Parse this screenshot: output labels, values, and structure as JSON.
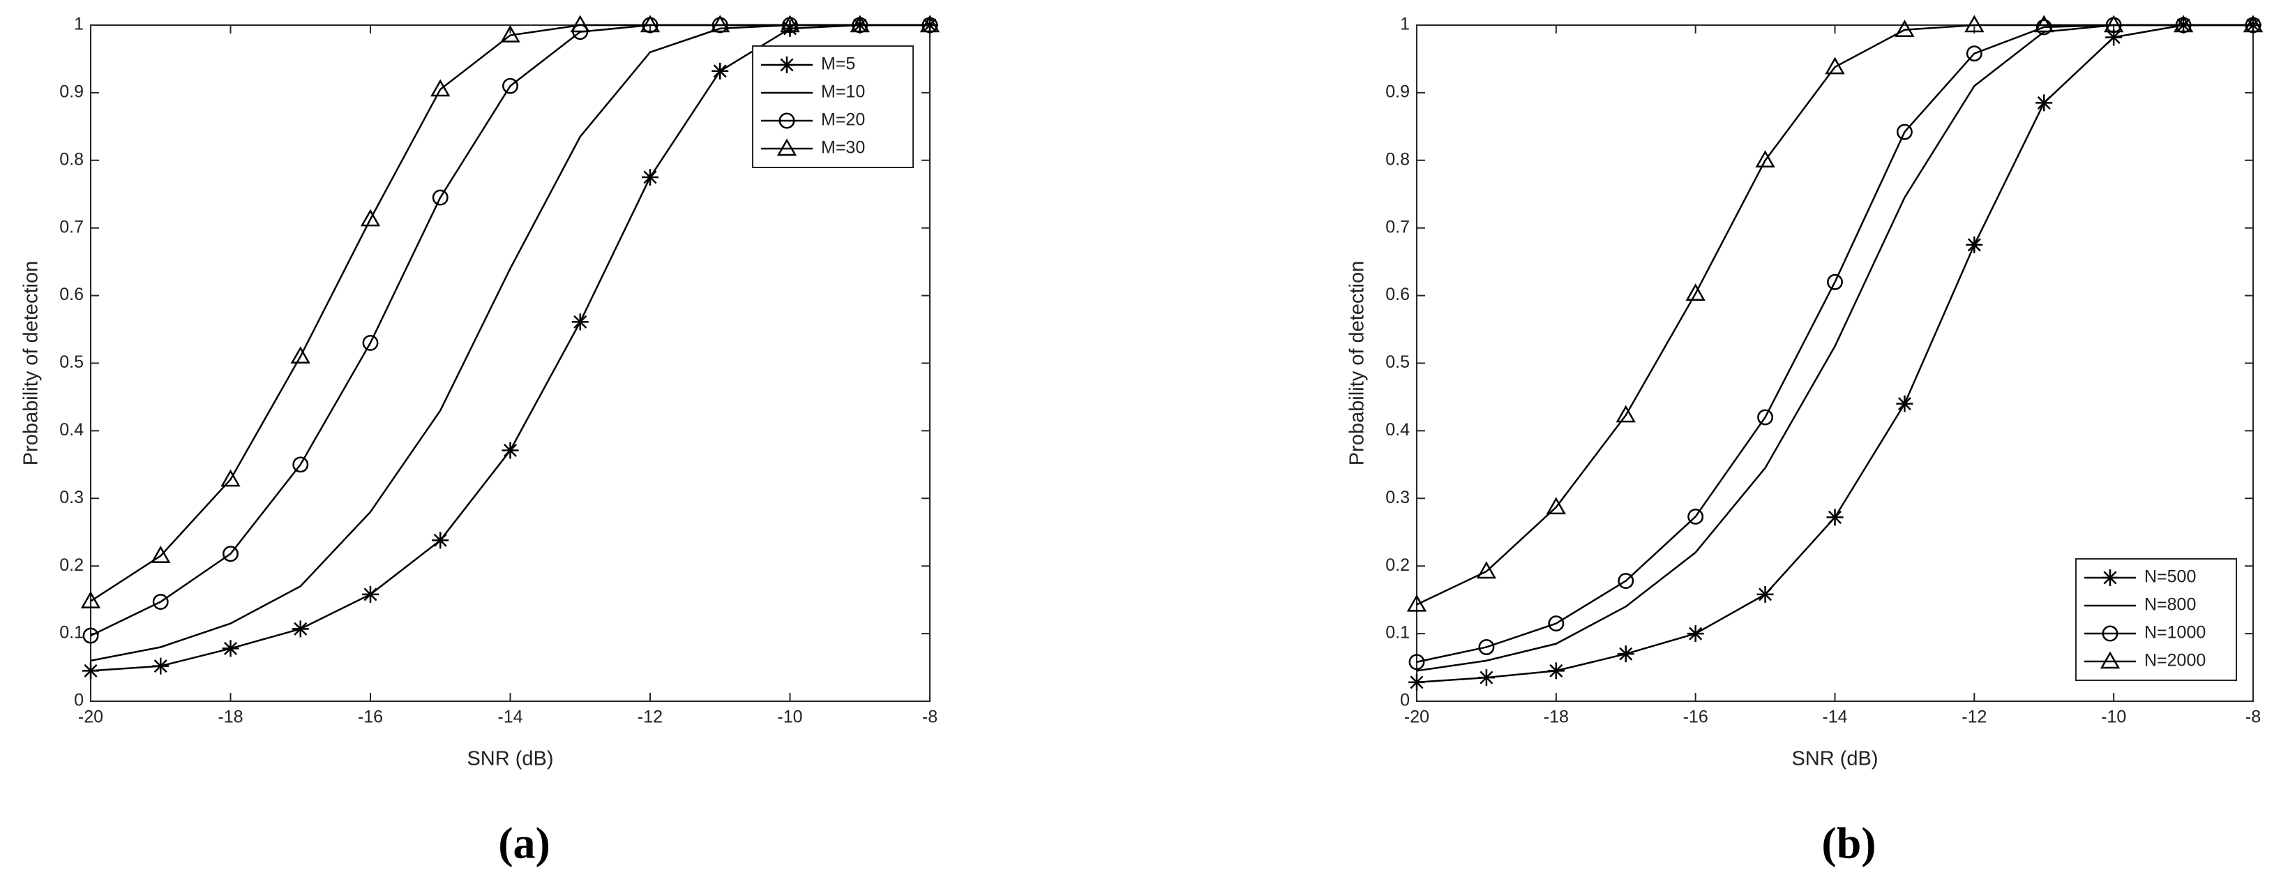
{
  "chart_data": [
    {
      "type": "line",
      "label": "(a)",
      "xlabel": "SNR (dB)",
      "ylabel": "Probability of detection",
      "x": [
        -20,
        -19,
        -18,
        -17,
        -16,
        -15,
        -14,
        -13,
        -12,
        -11,
        -10,
        -9,
        -8
      ],
      "xlim": [
        -20,
        -8
      ],
      "xticks": [
        -20,
        -18,
        -16,
        -14,
        -12,
        -10,
        -8
      ],
      "ylim": [
        0,
        1
      ],
      "yticks": [
        0,
        0.1,
        0.2,
        0.3,
        0.4,
        0.5,
        0.6,
        0.7,
        0.8,
        0.9,
        1
      ],
      "legend": "northeast",
      "series": [
        {
          "name": "M=5",
          "color": "#000000",
          "marker": "star",
          "values": [
            0.045,
            0.052,
            0.078,
            0.107,
            0.158,
            0.238,
            0.371,
            0.561,
            0.775,
            0.932,
            0.995,
            1,
            1
          ]
        },
        {
          "name": "M=10",
          "color": "#000000",
          "marker": "none",
          "values": [
            0.06,
            0.08,
            0.115,
            0.17,
            0.28,
            0.43,
            0.64,
            0.835,
            0.96,
            0.995,
            1,
            1,
            1
          ]
        },
        {
          "name": "M=20",
          "color": "#000000",
          "marker": "circle",
          "values": [
            0.097,
            0.147,
            0.218,
            0.35,
            0.53,
            0.745,
            0.91,
            0.99,
            1,
            1,
            1,
            1,
            1
          ]
        },
        {
          "name": "M=30",
          "color": "#000000",
          "marker": "triangle",
          "values": [
            0.148,
            0.215,
            0.328,
            0.51,
            0.713,
            0.905,
            0.985,
            1,
            1,
            1,
            1,
            1,
            1
          ]
        }
      ]
    },
    {
      "type": "line",
      "label": "(b)",
      "xlabel": "SNR (dB)",
      "ylabel": "Probability of detection",
      "x": [
        -20,
        -19,
        -18,
        -17,
        -16,
        -15,
        -14,
        -13,
        -12,
        -11,
        -10,
        -9,
        -8
      ],
      "xlim": [
        -20,
        -8
      ],
      "xticks": [
        -20,
        -18,
        -16,
        -14,
        -12,
        -10,
        -8
      ],
      "ylim": [
        0,
        1
      ],
      "yticks": [
        0,
        0.1,
        0.2,
        0.3,
        0.4,
        0.5,
        0.6,
        0.7,
        0.8,
        0.9,
        1
      ],
      "legend": "southeast",
      "series": [
        {
          "name": "N=500",
          "color": "#000000",
          "marker": "star",
          "values": [
            0.028,
            0.035,
            0.045,
            0.07,
            0.1,
            0.158,
            0.272,
            0.44,
            0.675,
            0.885,
            0.982,
            1,
            1
          ]
        },
        {
          "name": "N=800",
          "color": "#000000",
          "marker": "none",
          "values": [
            0.045,
            0.06,
            0.085,
            0.14,
            0.22,
            0.345,
            0.525,
            0.745,
            0.91,
            0.99,
            1,
            1,
            1
          ]
        },
        {
          "name": "N=1000",
          "color": "#000000",
          "marker": "circle",
          "values": [
            0.058,
            0.08,
            0.115,
            0.178,
            0.273,
            0.42,
            0.62,
            0.842,
            0.958,
            0.997,
            1,
            1,
            1
          ]
        },
        {
          "name": "N=2000",
          "color": "#000000",
          "marker": "triangle",
          "values": [
            0.143,
            0.192,
            0.287,
            0.423,
            0.603,
            0.8,
            0.938,
            0.993,
            1,
            1,
            1,
            1,
            1
          ]
        }
      ]
    }
  ]
}
